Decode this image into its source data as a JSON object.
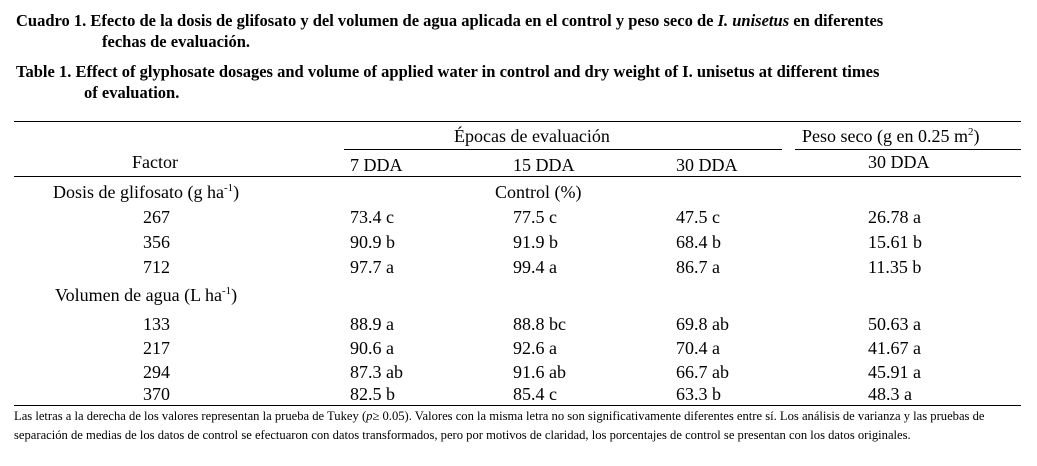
{
  "caption_es": {
    "label": "Cuadro 1.",
    "line1_pre": " Efecto de la dosis de glifosato y del volumen de agua aplicada en el control y peso seco de ",
    "species": "I. unisetus",
    "line1_post": " en diferentes",
    "line2": "fechas de evaluación."
  },
  "caption_en": {
    "label": "Table 1.",
    "line1": " Effect of glyphosate dosages and volume of applied water in control and dry weight of I. unisetus at different times",
    "line2": "of evaluation."
  },
  "header": {
    "epocas": "Épocas de evaluación",
    "peso_seco_pre": "Peso seco (g en 0.25 m",
    "peso_seco_sup": "2",
    "peso_seco_post": ")",
    "factor": "Factor",
    "col_7": "7 DDA",
    "col_15": "15 DDA",
    "col_30": "30 DDA",
    "col_ps": "30 DDA"
  },
  "sections": {
    "dosis": {
      "label": "Dosis de glifosato (g ha",
      "label_sup": "-1",
      "label_post": ")",
      "subheader": "Control (%)",
      "rows": [
        {
          "factor": "267",
          "d7": "73.4 c",
          "d15": "77.5 c",
          "d30": "47.5 c",
          "ps": "26.78 a"
        },
        {
          "factor": "356",
          "d7": "90.9 b",
          "d15": "91.9 b",
          "d30": "68.4 b",
          "ps": "15.61 b"
        },
        {
          "factor": "712",
          "d7": "97.7 a",
          "d15": "99.4 a",
          "d30": "86.7 a",
          "ps": "11.35 b"
        }
      ]
    },
    "volumen": {
      "label": "Volumen de agua (L ha",
      "label_sup": "-1",
      "label_post": ")",
      "rows": [
        {
          "factor": "133",
          "d7": "88.9 a",
          "d15": "88.8 bc",
          "d30": "69.8 ab",
          "ps": "50.63 a"
        },
        {
          "factor": "217",
          "d7": "90.6 a",
          "d15": "92.6 a",
          "d30": "70.4 a",
          "ps": "41.67 a"
        },
        {
          "factor": "294",
          "d7": "87.3 ab",
          "d15": "91.6 ab",
          "d30": "66.7 ab",
          "ps": "45.91 a"
        },
        {
          "factor": "370",
          "d7": "82.5 b",
          "d15": "85.4 c",
          "d30": "63.3 b",
          "ps": "48.3 a"
        }
      ]
    }
  },
  "footnote": {
    "pre": "Las letras a la derecha de los valores representan la prueba de Tukey (",
    "p": "p",
    "post": "≥ 0.05). Valores con la misma letra no son significativamente diferentes entre sí. Los análisis de varianza y las pruebas de separación de medias de los datos de control se efectuaron con datos transformados, pero por motivos de claridad, los porcentajes de control se presentan con los datos originales."
  }
}
